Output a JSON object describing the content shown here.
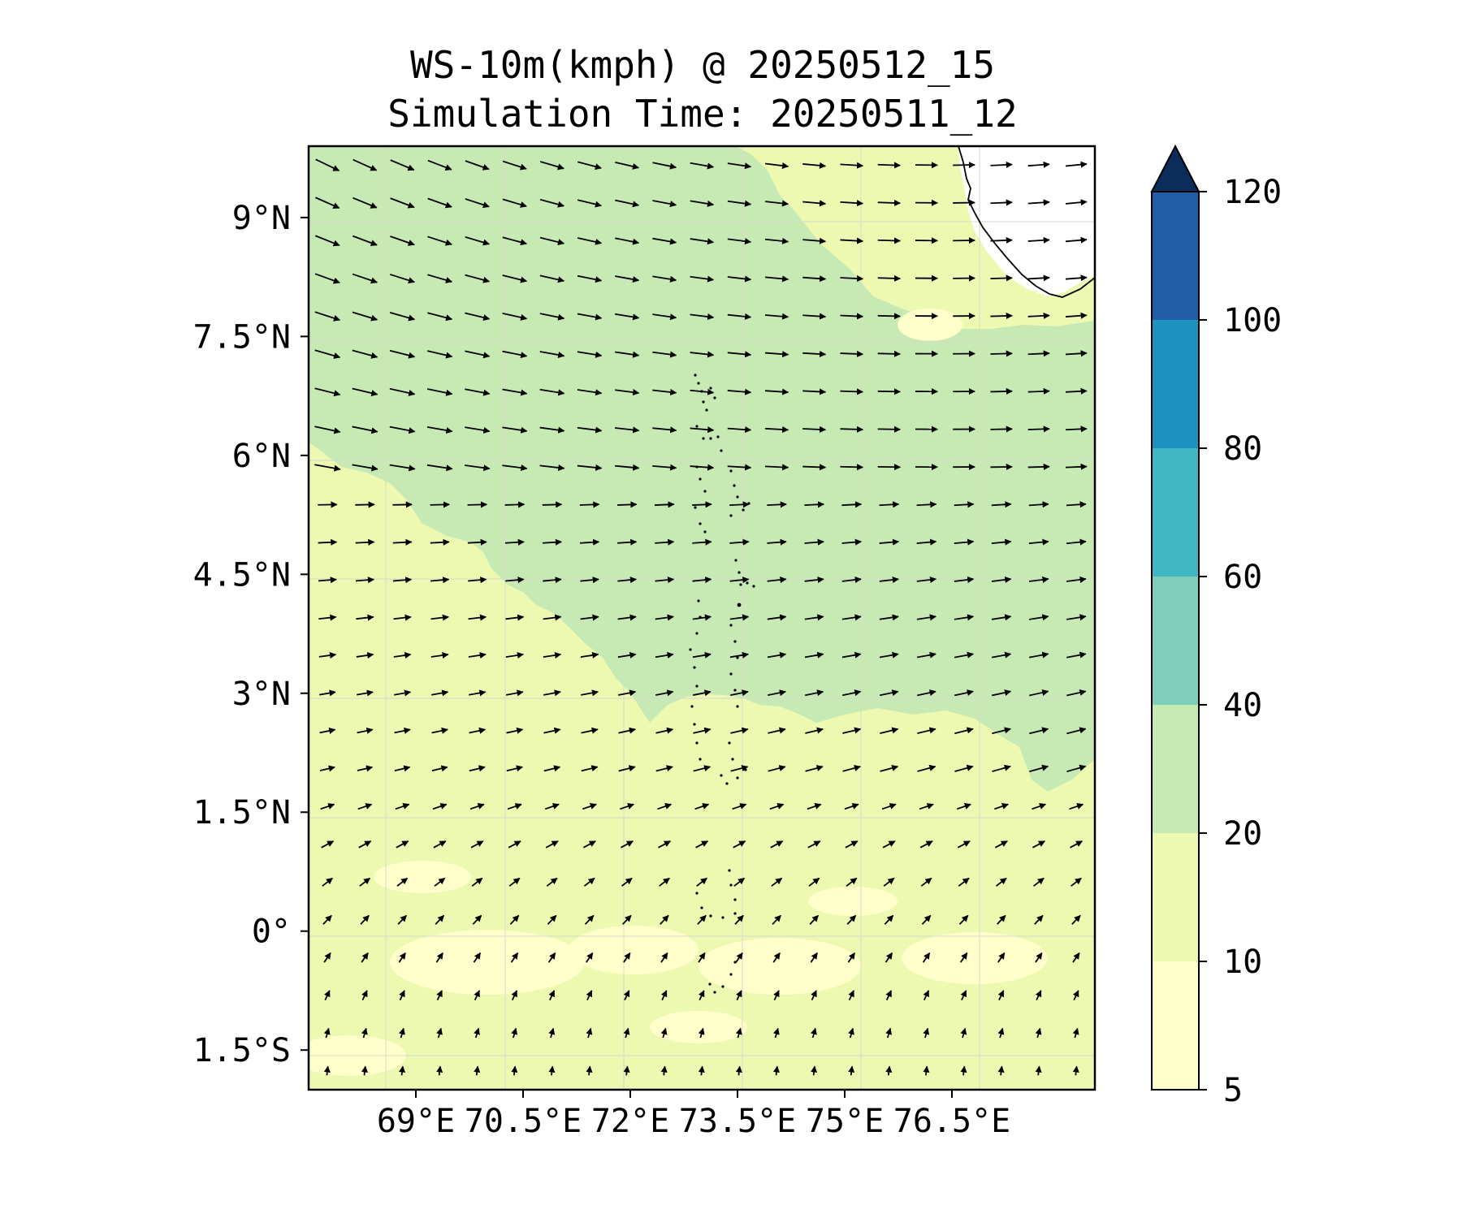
{
  "title": {
    "line1": "WS-10m(kmph) @ 20250512_15",
    "line2": "Simulation Time: 20250511_12"
  },
  "map": {
    "variable": "10 m wind speed and direction",
    "units": "kmph",
    "extent": {
      "lon": [
        67.5,
        78.5
      ],
      "lat": [
        -2.0,
        9.9
      ]
    },
    "lat_ticks": [
      {
        "value": 9,
        "label": "9°N"
      },
      {
        "value": 7.5,
        "label": "7.5°N"
      },
      {
        "value": 6,
        "label": "6°N"
      },
      {
        "value": 4.5,
        "label": "4.5°N"
      },
      {
        "value": 3,
        "label": "3°N"
      },
      {
        "value": 1.5,
        "label": "1.5°N"
      },
      {
        "value": 0,
        "label": "0°"
      },
      {
        "value": -1.5,
        "label": "1.5°S"
      }
    ],
    "lon_ticks": [
      {
        "value": 69,
        "label": "69°E"
      },
      {
        "value": 70.5,
        "label": "70.5°E"
      },
      {
        "value": 72,
        "label": "72°E"
      },
      {
        "value": 73.5,
        "label": "73.5°E"
      },
      {
        "value": 75,
        "label": "75°E"
      },
      {
        "value": 76.5,
        "label": "76.5°E"
      }
    ],
    "wind_regime": {
      "north_of_6N": "mostly westerly, slightly north-westerly in the far west",
      "1.5N_to_6N": "westerly to west-south-westerly",
      "south_of_0": "southerly to south-south-westerly, weak"
    },
    "speed_regions": [
      {
        "band_kmph": "20-40",
        "area": "northern and central belt, roughly 2N to 9.5N"
      },
      {
        "band_kmph": "10-20",
        "area": "south-western quadrant and north-east near the coast"
      },
      {
        "band_kmph": "5-10",
        "area": "patches near the equator and south"
      },
      {
        "band_kmph": "<5",
        "area": "small land area near the Indian coast"
      }
    ]
  },
  "colorbar": {
    "levels": [
      5,
      10,
      20,
      40,
      60,
      80,
      100,
      120
    ],
    "labels": [
      "5",
      "10",
      "20",
      "40",
      "60",
      "80",
      "100",
      "120"
    ],
    "colors": [
      "#ffffcc",
      "#edf8b1",
      "#c7e9b4",
      "#7fcdbb",
      "#41b6c4",
      "#1d91c0",
      "#225ea8",
      "#253494"
    ],
    "extend_color": "#0c2c5c",
    "extend": "max"
  }
}
